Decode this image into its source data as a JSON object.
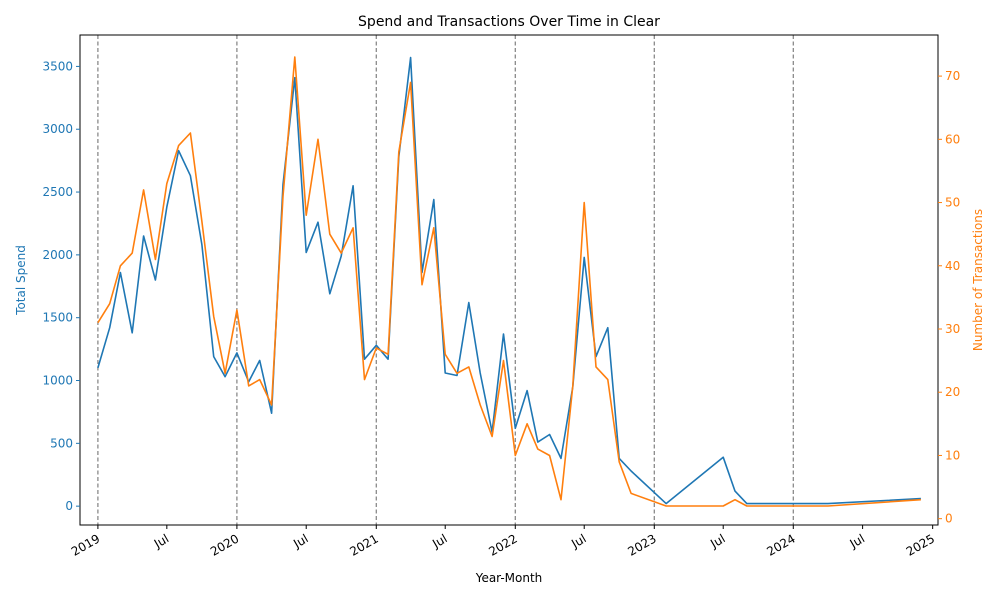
{
  "chart_data": {
    "type": "line",
    "title": "Spend and Transactions Over Time in Clear",
    "xlabel": "Year-Month",
    "ylabel_left": "Total Spend",
    "ylabel_right": "Number of Transactions",
    "x_ticks": [
      {
        "date": "2019-01",
        "label": "2019"
      },
      {
        "date": "2019-07",
        "label": "Jul"
      },
      {
        "date": "2020-01",
        "label": "2020"
      },
      {
        "date": "2020-07",
        "label": "Jul"
      },
      {
        "date": "2021-01",
        "label": "2021"
      },
      {
        "date": "2021-07",
        "label": "Jul"
      },
      {
        "date": "2022-01",
        "label": "2022"
      },
      {
        "date": "2022-07",
        "label": "Jul"
      },
      {
        "date": "2023-01",
        "label": "2023"
      },
      {
        "date": "2023-07",
        "label": "Jul"
      },
      {
        "date": "2024-01",
        "label": "2024"
      },
      {
        "date": "2024-07",
        "label": "Jul"
      },
      {
        "date": "2025-01",
        "label": "2025"
      }
    ],
    "year_boundaries": [
      "2019-01",
      "2020-01",
      "2021-01",
      "2022-01",
      "2023-01",
      "2024-01"
    ],
    "xlim": [
      "2018-11-15",
      "2025-01-15"
    ],
    "ylim_left": [
      -150,
      3750
    ],
    "ylim_right": [
      -1,
      76.5
    ],
    "y_ticks_left": [
      0,
      500,
      1000,
      1500,
      2000,
      2500,
      3000,
      3500
    ],
    "y_ticks_right": [
      0,
      10,
      20,
      30,
      40,
      50,
      60,
      70
    ],
    "colors": {
      "spend": "#1f77b4",
      "transactions": "#ff7f0e",
      "boundary": "#808080"
    },
    "series": [
      {
        "axis": "left",
        "color": "#1f77b4",
        "points": [
          [
            "2019-01",
            1100
          ],
          [
            "2019-02",
            1420
          ],
          [
            "2019-03",
            1860
          ],
          [
            "2019-04",
            1380
          ],
          [
            "2019-05",
            2150
          ],
          [
            "2019-06",
            1800
          ],
          [
            "2019-07",
            2380
          ],
          [
            "2019-08",
            2830
          ],
          [
            "2019-09",
            2630
          ],
          [
            "2019-10",
            2080
          ],
          [
            "2019-11",
            1190
          ],
          [
            "2019-12",
            1030
          ],
          [
            "2020-01",
            1220
          ],
          [
            "2020-02",
            990
          ],
          [
            "2020-03",
            1160
          ],
          [
            "2020-04",
            740
          ],
          [
            "2020-05",
            2560
          ],
          [
            "2020-06",
            3410
          ],
          [
            "2020-07",
            2020
          ],
          [
            "2020-08",
            2260
          ],
          [
            "2020-09",
            1690
          ],
          [
            "2020-10",
            1990
          ],
          [
            "2020-11",
            2550
          ],
          [
            "2020-12",
            1170
          ],
          [
            "2021-01",
            1280
          ],
          [
            "2021-02",
            1170
          ],
          [
            "2021-03",
            2780
          ],
          [
            "2021-04",
            3570
          ],
          [
            "2021-05",
            1860
          ],
          [
            "2021-06",
            2440
          ],
          [
            "2021-07",
            1060
          ],
          [
            "2021-08",
            1040
          ],
          [
            "2021-09",
            1620
          ],
          [
            "2021-10",
            1060
          ],
          [
            "2021-11",
            590
          ],
          [
            "2021-12",
            1370
          ],
          [
            "2022-01",
            620
          ],
          [
            "2022-02",
            920
          ],
          [
            "2022-03",
            510
          ],
          [
            "2022-04",
            570
          ],
          [
            "2022-05",
            380
          ],
          [
            "2022-06",
            950
          ],
          [
            "2022-07",
            1980
          ],
          [
            "2022-08",
            1190
          ],
          [
            "2022-09",
            1420
          ],
          [
            "2022-10",
            380
          ],
          [
            "2022-11",
            280
          ],
          [
            "2023-02",
            20
          ],
          [
            "2023-07",
            390
          ],
          [
            "2023-08",
            120
          ],
          [
            "2023-09",
            20
          ],
          [
            "2024-04",
            20
          ],
          [
            "2024-12",
            60
          ]
        ]
      },
      {
        "axis": "right",
        "color": "#ff7f0e",
        "points": [
          [
            "2019-01",
            31
          ],
          [
            "2019-02",
            34
          ],
          [
            "2019-03",
            40
          ],
          [
            "2019-04",
            42
          ],
          [
            "2019-05",
            52
          ],
          [
            "2019-06",
            41
          ],
          [
            "2019-07",
            53
          ],
          [
            "2019-08",
            59
          ],
          [
            "2019-09",
            61
          ],
          [
            "2019-10",
            47
          ],
          [
            "2019-11",
            32
          ],
          [
            "2019-12",
            23
          ],
          [
            "2020-01",
            33
          ],
          [
            "2020-02",
            21
          ],
          [
            "2020-03",
            22
          ],
          [
            "2020-04",
            18
          ],
          [
            "2020-05",
            51
          ],
          [
            "2020-06",
            73
          ],
          [
            "2020-07",
            48
          ],
          [
            "2020-08",
            60
          ],
          [
            "2020-09",
            45
          ],
          [
            "2020-10",
            42
          ],
          [
            "2020-11",
            46
          ],
          [
            "2020-12",
            22
          ],
          [
            "2021-01",
            27
          ],
          [
            "2021-02",
            26
          ],
          [
            "2021-03",
            58
          ],
          [
            "2021-04",
            69
          ],
          [
            "2021-05",
            37
          ],
          [
            "2021-06",
            46
          ],
          [
            "2021-07",
            26
          ],
          [
            "2021-08",
            23
          ],
          [
            "2021-09",
            24
          ],
          [
            "2021-10",
            18
          ],
          [
            "2021-11",
            13
          ],
          [
            "2021-12",
            25
          ],
          [
            "2022-01",
            10
          ],
          [
            "2022-02",
            15
          ],
          [
            "2022-03",
            11
          ],
          [
            "2022-04",
            10
          ],
          [
            "2022-05",
            3
          ],
          [
            "2022-06",
            21
          ],
          [
            "2022-07",
            50
          ],
          [
            "2022-08",
            24
          ],
          [
            "2022-09",
            22
          ],
          [
            "2022-10",
            9
          ],
          [
            "2022-11",
            4
          ],
          [
            "2023-02",
            2
          ],
          [
            "2023-07",
            2
          ],
          [
            "2023-08",
            3
          ],
          [
            "2023-09",
            2
          ],
          [
            "2024-04",
            2
          ],
          [
            "2024-12",
            3
          ]
        ]
      }
    ]
  }
}
